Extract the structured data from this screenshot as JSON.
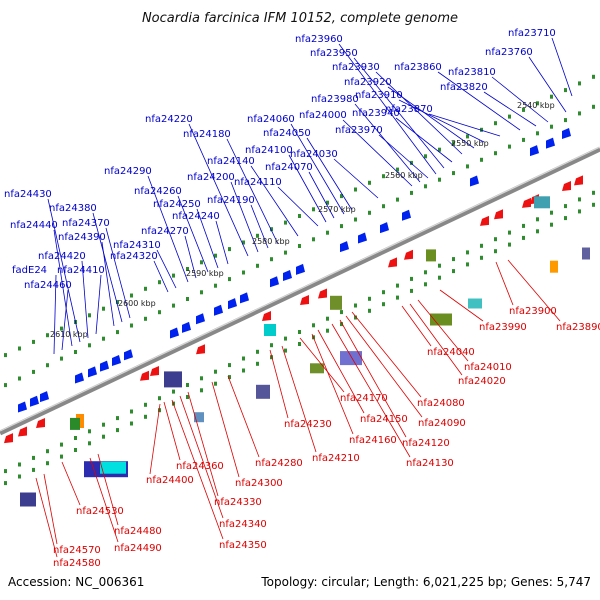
{
  "title": "Nocardia farcinica IFM 10152, complete genome",
  "accession": "Accession: NC_006361",
  "summary": "Topology: circular; Length: 6,021,225 bp; Genes: 5,747",
  "colors": {
    "forward_label": "#0000cc",
    "reverse_label": "#dd0000",
    "forward_feature": "#0022ee",
    "reverse_feature": "#ee1111",
    "backbone": "#888888",
    "tick": "#2e8b2e"
  },
  "ruler": [
    {
      "label": "2540 kbp"
    },
    {
      "label": "2550 kbp"
    },
    {
      "label": "2560 kbp"
    },
    {
      "label": "2570 kbp"
    },
    {
      "label": "2580 kbp"
    },
    {
      "label": "2590 kbp"
    },
    {
      "label": "2600 kbp"
    },
    {
      "label": "2610 kbp"
    }
  ],
  "forward_genes": [
    "nfa23710",
    "nfa23760",
    "nfa23810",
    "nfa23820",
    "nfa23860",
    "nfa23870",
    "nfa23910",
    "nfa23920",
    "nfa23930",
    "nfa23940",
    "nfa23950",
    "nfa23960",
    "nfa23970",
    "nfa23980",
    "nfa24000",
    "nfa24030",
    "nfa24050",
    "nfa24060",
    "nfa24070",
    "nfa24100",
    "nfa24110",
    "nfa24140",
    "nfa24180",
    "nfa24190",
    "nfa24200",
    "nfa24220",
    "nfa24240",
    "nfa24250",
    "nfa24260",
    "nfa24270",
    "nfa24290",
    "nfa24310",
    "nfa24320",
    "nfa24370",
    "nfa24380",
    "nfa24390",
    "nfa24410",
    "nfa24420",
    "nfa24430",
    "nfa24440",
    "nfa24460",
    "fadE24"
  ],
  "reverse_genes": [
    "nfa23890",
    "nfa23900",
    "nfa23990",
    "nfa24010",
    "nfa24020",
    "nfa24040",
    "nfa24080",
    "nfa24090",
    "nfa24120",
    "nfa24130",
    "nfa24150",
    "nfa24160",
    "nfa24170",
    "nfa24210",
    "nfa24230",
    "nfa24280",
    "nfa24300",
    "nfa24330",
    "nfa24340",
    "nfa24350",
    "nfa24360",
    "nfa24400",
    "nfa24480",
    "nfa24490",
    "nfa24530",
    "nfa24570",
    "nfa24580"
  ]
}
